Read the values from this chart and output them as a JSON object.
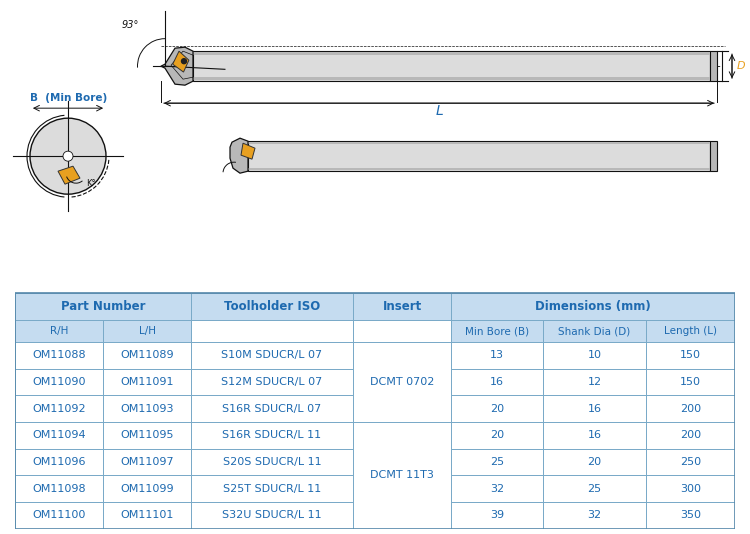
{
  "blue": "#1E6AB0",
  "orange": "#E8A020",
  "gray_light": "#DCDCDC",
  "gray_mid": "#B8B8B8",
  "gray_dark": "#888888",
  "black": "#111111",
  "table_header_bg": "#C5DCF0",
  "header_text_color": "#1E6AB0",
  "cell_text_color": "#1E6AB0",
  "table": {
    "rows": [
      [
        "OM11088",
        "OM11089",
        "S10M SDUCR/L 07",
        "DCMT 0702",
        "13",
        "10",
        "150"
      ],
      [
        "OM11090",
        "OM11091",
        "S12M SDUCR/L 07",
        "DCMT 0702",
        "16",
        "12",
        "150"
      ],
      [
        "OM11092",
        "OM11093",
        "S16R SDUCR/L 07",
        "DCMT 0702",
        "20",
        "16",
        "200"
      ],
      [
        "OM11094",
        "OM11095",
        "S16R SDUCR/L 11",
        "DCMT 11T3",
        "20",
        "16",
        "200"
      ],
      [
        "OM11096",
        "OM11097",
        "S20S SDUCR/L 11",
        "DCMT 11T3",
        "25",
        "20",
        "250"
      ],
      [
        "OM11098",
        "OM11099",
        "S25T SDUCR/L 11",
        "DCMT 11T3",
        "32",
        "25",
        "300"
      ],
      [
        "OM11100",
        "OM11101",
        "S32U SDUCR/L 11",
        "DCMT 11T3",
        "39",
        "32",
        "350"
      ]
    ]
  }
}
